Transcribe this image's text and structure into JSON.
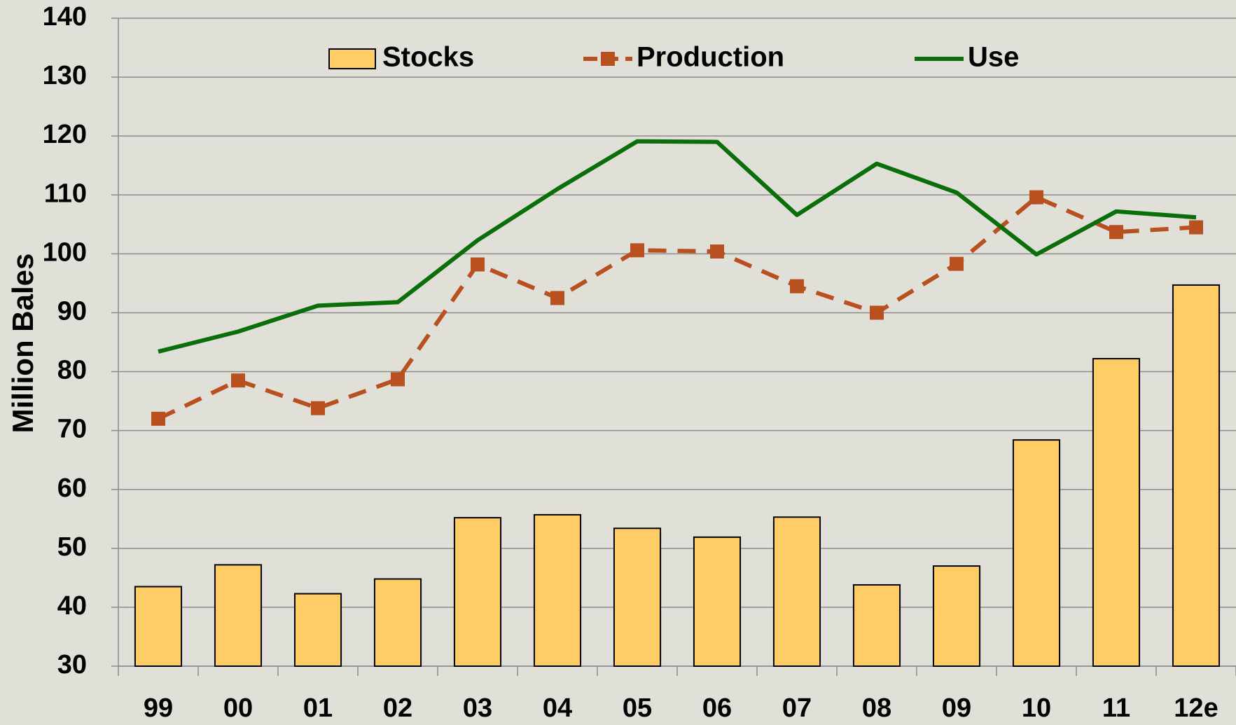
{
  "chart_data": {
    "type": "bar_line",
    "y_label": "Million Bales",
    "categories": [
      "99",
      "00",
      "01",
      "02",
      "03",
      "04",
      "05",
      "06",
      "07",
      "08",
      "09",
      "10",
      "11",
      "12e"
    ],
    "series": [
      {
        "name": "Stocks",
        "type": "bar",
        "color": "#ffcc66",
        "values": [
          43.5,
          47.2,
          42.3,
          44.8,
          55.2,
          55.7,
          53.4,
          51.9,
          55.3,
          43.8,
          47.0,
          68.4,
          82.2,
          94.7
        ]
      },
      {
        "name": "Production",
        "type": "line",
        "dashed": true,
        "marker": "square",
        "color": "#b8501f",
        "values": [
          72.0,
          78.5,
          73.8,
          78.7,
          98.2,
          92.5,
          100.6,
          100.4,
          94.5,
          90.0,
          98.3,
          109.6,
          103.7,
          104.5
        ]
      },
      {
        "name": "Use",
        "type": "line",
        "color": "#0a6e0a",
        "values": [
          83.4,
          86.8,
          91.2,
          91.8,
          102.3,
          111.0,
          119.1,
          119.0,
          106.6,
          115.3,
          110.4,
          99.9,
          107.2,
          106.2
        ]
      }
    ],
    "ylim": [
      30,
      140
    ],
    "yticks": [
      30,
      40,
      50,
      60,
      70,
      80,
      90,
      100,
      110,
      120,
      130,
      140
    ],
    "grid": true,
    "legend": "top"
  }
}
